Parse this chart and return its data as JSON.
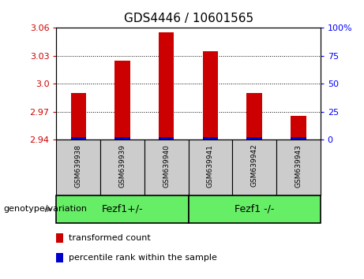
{
  "title": "GDS4446 / 10601565",
  "samples": [
    "GSM639938",
    "GSM639939",
    "GSM639940",
    "GSM639941",
    "GSM639942",
    "GSM639943"
  ],
  "red_values": [
    2.99,
    3.025,
    3.055,
    3.035,
    2.99,
    2.965
  ],
  "y_min": 2.94,
  "y_max": 3.06,
  "y_ticks": [
    2.94,
    2.97,
    3.0,
    3.03,
    3.06
  ],
  "y_right_ticks": [
    0,
    25,
    50,
    75,
    100
  ],
  "bar_width": 0.35,
  "red_color": "#cc0000",
  "blue_color": "#0000cc",
  "group1_label": "Fezf1+/-",
  "group2_label": "Fezf1 -/-",
  "group_bg_color": "#66ee66",
  "sample_bg_color": "#cccccc",
  "legend_red": "transformed count",
  "legend_blue": "percentile rank within the sample",
  "genotype_label": "genotype/variation",
  "base_value": 2.94,
  "blue_bar_height": 0.0025,
  "grid_dotted_at": [
    2.97,
    3.0,
    3.03
  ]
}
